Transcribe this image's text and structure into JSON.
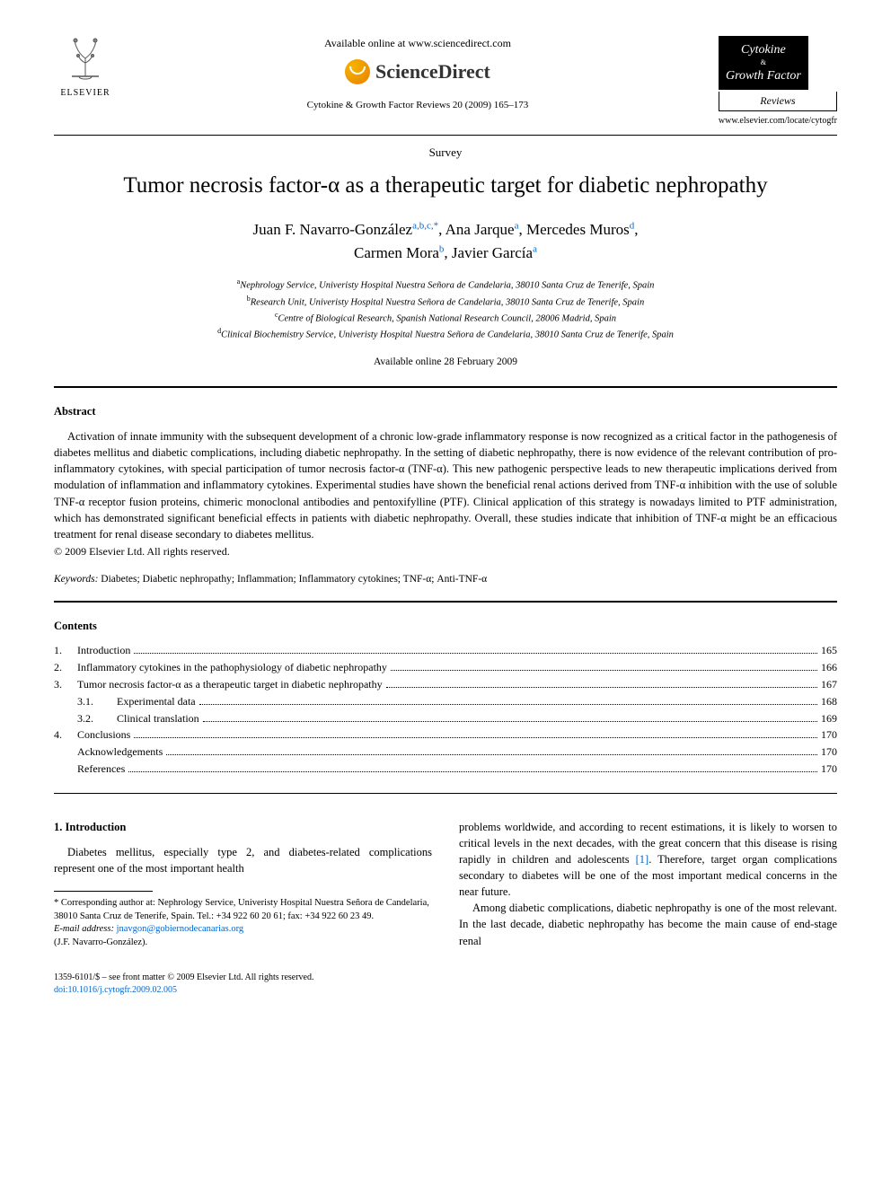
{
  "header": {
    "elsevier": "ELSEVIER",
    "available_online": "Available online at www.sciencedirect.com",
    "sd_brand": "ScienceDirect",
    "citation": "Cytokine & Growth Factor Reviews 20 (2009) 165–173",
    "journal_line1": "Cytokine",
    "journal_amp": "&",
    "journal_line2": "Growth Factor",
    "journal_reviews": "Reviews",
    "journal_url": "www.elsevier.com/locate/cytogfr"
  },
  "article": {
    "type": "Survey",
    "title": "Tumor necrosis factor-α as a therapeutic target for diabetic nephropathy",
    "authors": [
      {
        "name": "Juan F. Navarro-González",
        "aff": "a,b,c,",
        "star": true
      },
      {
        "name": "Ana Jarque",
        "aff": "a"
      },
      {
        "name": "Mercedes Muros",
        "aff": "d"
      },
      {
        "name": "Carmen Mora",
        "aff": "b"
      },
      {
        "name": "Javier García",
        "aff": "a"
      }
    ],
    "affiliations": {
      "a": "Nephrology Service, Univeristy Hospital Nuestra Señora de Candelaria, 38010 Santa Cruz de Tenerife, Spain",
      "b": "Research Unit, Univeristy Hospital Nuestra Señora de Candelaria, 38010 Santa Cruz de Tenerife, Spain",
      "c": "Centre of Biological Research, Spanish National Research Council, 28006 Madrid, Spain",
      "d": "Clinical Biochemistry Service, Univeristy Hospital Nuestra Señora de Candelaria, 38010 Santa Cruz de Tenerife, Spain"
    },
    "available_date": "Available online 28 February 2009"
  },
  "abstract": {
    "heading": "Abstract",
    "text": "Activation of innate immunity with the subsequent development of a chronic low-grade inflammatory response is now recognized as a critical factor in the pathogenesis of diabetes mellitus and diabetic complications, including diabetic nephropathy. In the setting of diabetic nephropathy, there is now evidence of the relevant contribution of pro-inflammatory cytokines, with special participation of tumor necrosis factor-α (TNF-α). This new pathogenic perspective leads to new therapeutic implications derived from modulation of inflammation and inflammatory cytokines. Experimental studies have shown the beneficial renal actions derived from TNF-α inhibition with the use of soluble TNF-α receptor fusion proteins, chimeric monoclonal antibodies and pentoxifylline (PTF). Clinical application of this strategy is nowadays limited to PTF administration, which has demonstrated significant beneficial effects in patients with diabetic nephropathy. Overall, these studies indicate that inhibition of TNF-α might be an efficacious treatment for renal disease secondary to diabetes mellitus.",
    "copyright": "© 2009 Elsevier Ltd. All rights reserved."
  },
  "keywords": {
    "label": "Keywords:",
    "list": "Diabetes; Diabetic nephropathy; Inflammation; Inflammatory cytokines; TNF-α; Anti-TNF-α"
  },
  "contents": {
    "heading": "Contents",
    "items": [
      {
        "num": "1.",
        "title": "Introduction",
        "page": "165",
        "level": 0
      },
      {
        "num": "2.",
        "title": "Inflammatory cytokines in the pathophysiology of diabetic nephropathy",
        "page": "166",
        "level": 0
      },
      {
        "num": "3.",
        "title": "Tumor necrosis factor-α as a therapeutic target in diabetic nephropathy",
        "page": "167",
        "level": 0
      },
      {
        "num": "3.1.",
        "title": "Experimental data",
        "page": "168",
        "level": 1
      },
      {
        "num": "3.2.",
        "title": "Clinical translation",
        "page": "169",
        "level": 1
      },
      {
        "num": "4.",
        "title": "Conclusions",
        "page": "170",
        "level": 0
      },
      {
        "num": "",
        "title": "Acknowledgements",
        "page": "170",
        "level": 0.5
      },
      {
        "num": "",
        "title": "References",
        "page": "170",
        "level": 0.5
      }
    ]
  },
  "body": {
    "intro_heading": "1. Introduction",
    "col1_p1": "Diabetes mellitus, especially type 2, and diabetes-related complications represent one of the most important health",
    "col2_p1a": "problems worldwide, and according to recent estimations, it is likely to worsen to critical levels in the next decades, with the great concern that this disease is rising rapidly in children and adolescents ",
    "col2_ref": "[1]",
    "col2_p1b": ". Therefore, target organ complications secondary to diabetes will be one of the most important medical concerns in the near future.",
    "col2_p2": "Among diabetic complications, diabetic nephropathy is one of the most relevant. In the last decade, diabetic nephropathy has become the main cause of end-stage renal"
  },
  "footnote": {
    "corr": "* Corresponding author at: Nephrology Service, Univeristy Hospital Nuestra Señora de Candelaria, 38010 Santa Cruz de Tenerife, Spain. Tel.: +34 922 60 20 61; fax: +34 922 60 23 49.",
    "email_label": "E-mail address:",
    "email": "jnavgon@gobiernodecanarias.org",
    "author_line": "(J.F. Navarro-González)."
  },
  "footer": {
    "line1": "1359-6101/$ – see front matter © 2009 Elsevier Ltd. All rights reserved.",
    "doi": "doi:10.1016/j.cytogfr.2009.02.005"
  },
  "colors": {
    "link": "#0066cc",
    "text": "#000000",
    "bg": "#ffffff"
  }
}
